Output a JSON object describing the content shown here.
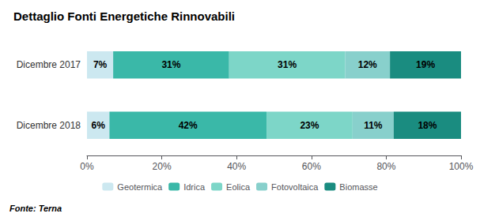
{
  "chart_data": {
    "type": "bar",
    "title": "Dettaglio Fonti Energetiche Rinnovabili",
    "annotations": [
      "Fonte: Terna"
    ],
    "orientation": "horizontal",
    "stacked": true,
    "data_labels": true,
    "grid": false,
    "legend": "bottom",
    "categories": [
      "Dicembre 2017",
      "Dicembre 2018"
    ],
    "series": [
      {
        "name": "Geotermica",
        "color": "#cce8f0",
        "values": [
          7,
          6
        ],
        "value_labels": [
          "7%",
          "6%"
        ]
      },
      {
        "name": "Idrica",
        "color": "#3ab8a8",
        "values": [
          31,
          42
        ],
        "value_labels": [
          "31%",
          "42%"
        ]
      },
      {
        "name": "Eolica",
        "color": "#7dd6c8",
        "values": [
          31,
          23
        ],
        "value_labels": [
          "31%",
          "23%"
        ]
      },
      {
        "name": "Fotovoltaica",
        "color": "#88d0cc",
        "values": [
          12,
          11
        ],
        "value_labels": [
          "12%",
          "11%"
        ]
      },
      {
        "name": "Biomasse",
        "color": "#1a8c80",
        "values": [
          19,
          18
        ],
        "value_labels": [
          "19%",
          "18%"
        ]
      }
    ],
    "xlim": [
      0,
      100
    ],
    "xticks": [
      {
        "value": 0,
        "label": "0%"
      },
      {
        "value": 20,
        "label": "20%"
      },
      {
        "value": 40,
        "label": "40%"
      },
      {
        "value": 60,
        "label": "60%"
      },
      {
        "value": 80,
        "label": "80%"
      },
      {
        "value": 100,
        "label": "100%"
      }
    ]
  }
}
